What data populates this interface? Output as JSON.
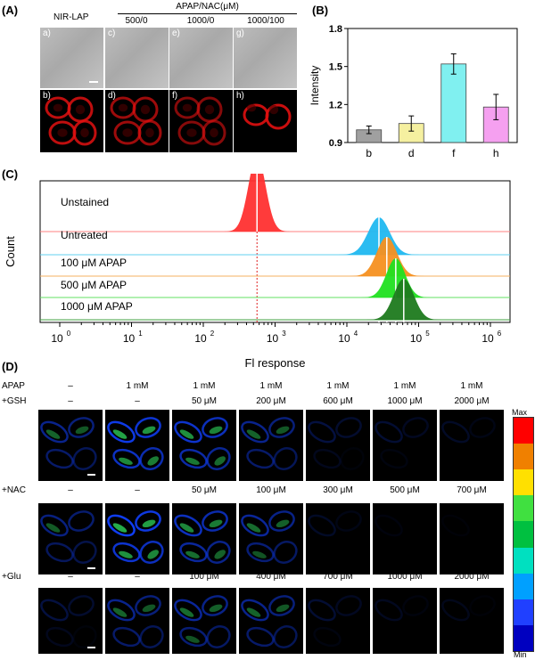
{
  "panelA": {
    "label": "(A)",
    "group_label": "NIR-LAP",
    "treatment_title": "APAP/NAC(μM)",
    "columns": [
      "500/0",
      "1000/0",
      "1000/100"
    ],
    "top_sub": [
      "a)",
      "c)",
      "e)",
      "g)"
    ],
    "bottom_sub": [
      "b)",
      "d)",
      "f)",
      "h)"
    ]
  },
  "panelB": {
    "label": "(B)",
    "chart_data": {
      "type": "bar",
      "categories": [
        "b",
        "d",
        "f",
        "h"
      ],
      "values": [
        1.0,
        1.05,
        1.52,
        1.18
      ],
      "errors": [
        0.03,
        0.06,
        0.08,
        0.1
      ],
      "colors": [
        "#a0a0a0",
        "#f5f0a0",
        "#80f0f0",
        "#f5a0f0"
      ],
      "ylabel": "Intensity",
      "ylim": [
        0.9,
        1.8
      ],
      "yticks": [
        "0.9",
        "1.2",
        "1.5",
        "1.8"
      ]
    }
  },
  "panelC": {
    "label": "(C)",
    "chart_data": {
      "type": "area",
      "xlabel": "Fl  response",
      "ylabel": "Count",
      "x_scale": "log",
      "xlim": [
        1,
        1000000
      ],
      "xticks": [
        "10",
        "10",
        "10",
        "10",
        "10",
        "10",
        "10"
      ],
      "xtick_exponents": [
        "0",
        "1",
        "2",
        "3",
        "4",
        "5",
        "6"
      ],
      "series": [
        {
          "name": "Unstained",
          "peak": 560,
          "color": "#ff3030",
          "baseline": "#ff8080"
        },
        {
          "name": "Untreated",
          "peak": 28000,
          "color": "#20b8f0",
          "baseline": "#60d0f0"
        },
        {
          "name": "100 μM APAP",
          "peak": 36000,
          "color": "#f59020",
          "baseline": "#f5b060"
        },
        {
          "name": "500 μM APAP",
          "peak": 48000,
          "color": "#20e020",
          "baseline": "#60e060"
        },
        {
          "name": "1000 μM APAP",
          "peak": 62000,
          "color": "#1e7a1e",
          "baseline": "#40a040"
        }
      ]
    }
  },
  "panelD": {
    "label": "(D)",
    "apap_label": "APAP",
    "apap_values": [
      "–",
      "1 mM",
      "1 mM",
      "1 mM",
      "1 mM",
      "1 mM",
      "1 mM"
    ],
    "rows": [
      {
        "label": "+GSH",
        "values": [
          "–",
          "–",
          "50 μM",
          "200 μM",
          "600 μM",
          "1000 μM",
          "2000 μM"
        ],
        "intensity": [
          0.55,
          0.9,
          0.8,
          0.55,
          0.25,
          0.2,
          0.15
        ]
      },
      {
        "label": "+NAC",
        "values": [
          "–",
          "–",
          "50 μM",
          "100 μM",
          "300 μM",
          "500 μM",
          "700 μM"
        ],
        "intensity": [
          0.5,
          0.95,
          0.75,
          0.6,
          0.15,
          0.05,
          0.03
        ]
      },
      {
        "label": "+Glu",
        "values": [
          "–",
          "–",
          "100 μM",
          "400 μM",
          "700 μM",
          "1000 μM",
          "2000 μM"
        ],
        "intensity": [
          0.25,
          0.55,
          0.6,
          0.55,
          0.2,
          0.12,
          0.1
        ]
      }
    ],
    "colorbar": {
      "max_label": "Max",
      "min_label": "Min",
      "colors": [
        "#ff0000",
        "#f08000",
        "#ffe000",
        "#40e040",
        "#00c040",
        "#00e0c0",
        "#00a0ff",
        "#2040ff",
        "#0000c0"
      ]
    }
  }
}
